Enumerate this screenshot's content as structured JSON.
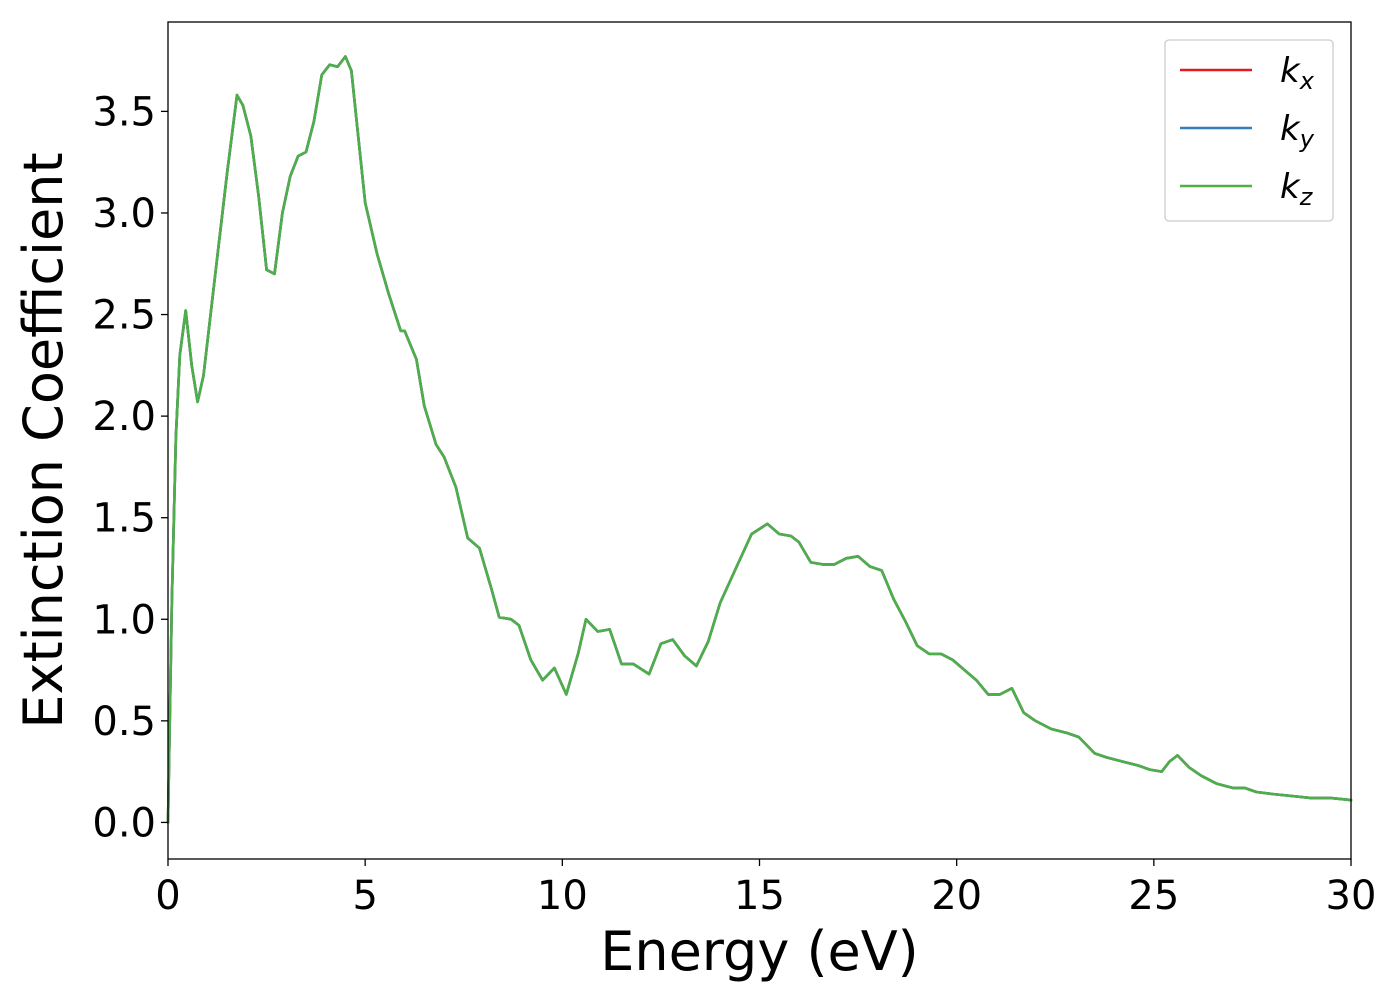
{
  "chart_data": {
    "type": "line",
    "title": "",
    "xlabel": "Energy (eV)",
    "ylabel": "Extinction Coefficient",
    "xlim": [
      0,
      30
    ],
    "ylim": [
      -0.18,
      3.94
    ],
    "xticks": [
      0,
      5,
      10,
      15,
      20,
      25,
      30
    ],
    "yticks": [
      0.0,
      0.5,
      1.0,
      1.5,
      2.0,
      2.5,
      3.0,
      3.5
    ],
    "ytick_labels": [
      "0.0",
      "0.5",
      "1.0",
      "1.5",
      "2.0",
      "2.5",
      "3.0",
      "3.5"
    ],
    "grid": false,
    "legend_position": "top-right",
    "series": [
      {
        "name": "k_x",
        "label_main": "k",
        "label_sub": "x",
        "color": "#e41a1c",
        "x": [
          0,
          0.1,
          0.2,
          0.3,
          0.45,
          0.6,
          0.75,
          0.9,
          1.2,
          1.5,
          1.75,
          1.9,
          2.1,
          2.3,
          2.5,
          2.7,
          2.9,
          3.1,
          3.3,
          3.5,
          3.7,
          3.9,
          4.1,
          4.3,
          4.5,
          4.65,
          4.8,
          5.0,
          5.3,
          5.6,
          5.9,
          6.0,
          6.3,
          6.5,
          6.8,
          7.0,
          7.3,
          7.6,
          7.9,
          8.2,
          8.4,
          8.7,
          8.9,
          9.2,
          9.5,
          9.8,
          10.1,
          10.4,
          10.6,
          10.9,
          11.2,
          11.5,
          11.8,
          12.2,
          12.5,
          12.8,
          13.1,
          13.4,
          13.7,
          14.0,
          14.4,
          14.8,
          15.2,
          15.5,
          15.8,
          16.0,
          16.3,
          16.6,
          16.9,
          17.2,
          17.5,
          17.8,
          18.1,
          18.4,
          18.7,
          19.0,
          19.3,
          19.6,
          19.9,
          20.2,
          20.5,
          20.8,
          21.1,
          21.4,
          21.7,
          22.0,
          22.4,
          22.8,
          23.1,
          23.5,
          23.8,
          24.2,
          24.6,
          24.9,
          25.2,
          25.4,
          25.6,
          25.9,
          26.2,
          26.6,
          27.0,
          27.3,
          27.6,
          28.0,
          28.5,
          29.0,
          29.5,
          30.0
        ],
        "y": [
          0.0,
          1.1,
          1.9,
          2.3,
          2.52,
          2.25,
          2.07,
          2.2,
          2.7,
          3.2,
          3.58,
          3.53,
          3.38,
          3.08,
          2.72,
          2.7,
          3.0,
          3.18,
          3.28,
          3.3,
          3.45,
          3.68,
          3.73,
          3.72,
          3.77,
          3.7,
          3.42,
          3.05,
          2.8,
          2.6,
          2.42,
          2.42,
          2.28,
          2.05,
          1.86,
          1.8,
          1.65,
          1.4,
          1.35,
          1.15,
          1.01,
          1.0,
          0.97,
          0.8,
          0.7,
          0.76,
          0.63,
          0.83,
          1.0,
          0.94,
          0.95,
          0.78,
          0.78,
          0.73,
          0.88,
          0.9,
          0.82,
          0.77,
          0.89,
          1.08,
          1.25,
          1.42,
          1.47,
          1.42,
          1.41,
          1.38,
          1.28,
          1.27,
          1.27,
          1.3,
          1.31,
          1.26,
          1.24,
          1.1,
          0.99,
          0.87,
          0.83,
          0.83,
          0.8,
          0.75,
          0.7,
          0.63,
          0.63,
          0.66,
          0.54,
          0.5,
          0.46,
          0.44,
          0.42,
          0.34,
          0.32,
          0.3,
          0.28,
          0.26,
          0.25,
          0.3,
          0.33,
          0.27,
          0.23,
          0.19,
          0.17,
          0.17,
          0.15,
          0.14,
          0.13,
          0.12,
          0.12,
          0.11
        ]
      },
      {
        "name": "k_y",
        "label_main": "k",
        "label_sub": "y",
        "color": "#377eb8",
        "x": [
          0,
          0.1,
          0.2,
          0.3,
          0.45,
          0.6,
          0.75,
          0.9,
          1.2,
          1.5,
          1.75,
          1.9,
          2.1,
          2.3,
          2.5,
          2.7,
          2.9,
          3.1,
          3.3,
          3.5,
          3.7,
          3.9,
          4.1,
          4.3,
          4.5,
          4.65,
          4.8,
          5.0,
          5.3,
          5.6,
          5.9,
          6.0,
          6.3,
          6.5,
          6.8,
          7.0,
          7.3,
          7.6,
          7.9,
          8.2,
          8.4,
          8.7,
          8.9,
          9.2,
          9.5,
          9.8,
          10.1,
          10.4,
          10.6,
          10.9,
          11.2,
          11.5,
          11.8,
          12.2,
          12.5,
          12.8,
          13.1,
          13.4,
          13.7,
          14.0,
          14.4,
          14.8,
          15.2,
          15.5,
          15.8,
          16.0,
          16.3,
          16.6,
          16.9,
          17.2,
          17.5,
          17.8,
          18.1,
          18.4,
          18.7,
          19.0,
          19.3,
          19.6,
          19.9,
          20.2,
          20.5,
          20.8,
          21.1,
          21.4,
          21.7,
          22.0,
          22.4,
          22.8,
          23.1,
          23.5,
          23.8,
          24.2,
          24.6,
          24.9,
          25.2,
          25.4,
          25.6,
          25.9,
          26.2,
          26.6,
          27.0,
          27.3,
          27.6,
          28.0,
          28.5,
          29.0,
          29.5,
          30.0
        ],
        "y": [
          0.0,
          1.1,
          1.9,
          2.3,
          2.52,
          2.25,
          2.07,
          2.2,
          2.7,
          3.2,
          3.58,
          3.53,
          3.38,
          3.08,
          2.72,
          2.7,
          3.0,
          3.18,
          3.28,
          3.3,
          3.45,
          3.68,
          3.73,
          3.72,
          3.77,
          3.7,
          3.42,
          3.05,
          2.8,
          2.6,
          2.42,
          2.42,
          2.28,
          2.05,
          1.86,
          1.8,
          1.65,
          1.4,
          1.35,
          1.15,
          1.01,
          1.0,
          0.97,
          0.8,
          0.7,
          0.76,
          0.63,
          0.83,
          1.0,
          0.94,
          0.95,
          0.78,
          0.78,
          0.73,
          0.88,
          0.9,
          0.82,
          0.77,
          0.89,
          1.08,
          1.25,
          1.42,
          1.47,
          1.42,
          1.41,
          1.38,
          1.28,
          1.27,
          1.27,
          1.3,
          1.31,
          1.26,
          1.24,
          1.1,
          0.99,
          0.87,
          0.83,
          0.83,
          0.8,
          0.75,
          0.7,
          0.63,
          0.63,
          0.66,
          0.54,
          0.5,
          0.46,
          0.44,
          0.42,
          0.34,
          0.32,
          0.3,
          0.28,
          0.26,
          0.25,
          0.3,
          0.33,
          0.27,
          0.23,
          0.19,
          0.17,
          0.17,
          0.15,
          0.14,
          0.13,
          0.12,
          0.12,
          0.11
        ]
      },
      {
        "name": "k_z",
        "label_main": "k",
        "label_sub": "z",
        "color": "#4daf4a",
        "x": [
          0,
          0.1,
          0.2,
          0.3,
          0.45,
          0.6,
          0.75,
          0.9,
          1.2,
          1.5,
          1.75,
          1.9,
          2.1,
          2.3,
          2.5,
          2.7,
          2.9,
          3.1,
          3.3,
          3.5,
          3.7,
          3.9,
          4.1,
          4.3,
          4.5,
          4.65,
          4.8,
          5.0,
          5.3,
          5.6,
          5.9,
          6.0,
          6.3,
          6.5,
          6.8,
          7.0,
          7.3,
          7.6,
          7.9,
          8.2,
          8.4,
          8.7,
          8.9,
          9.2,
          9.5,
          9.8,
          10.1,
          10.4,
          10.6,
          10.9,
          11.2,
          11.5,
          11.8,
          12.2,
          12.5,
          12.8,
          13.1,
          13.4,
          13.7,
          14.0,
          14.4,
          14.8,
          15.2,
          15.5,
          15.8,
          16.0,
          16.3,
          16.6,
          16.9,
          17.2,
          17.5,
          17.8,
          18.1,
          18.4,
          18.7,
          19.0,
          19.3,
          19.6,
          19.9,
          20.2,
          20.5,
          20.8,
          21.1,
          21.4,
          21.7,
          22.0,
          22.4,
          22.8,
          23.1,
          23.5,
          23.8,
          24.2,
          24.6,
          24.9,
          25.2,
          25.4,
          25.6,
          25.9,
          26.2,
          26.6,
          27.0,
          27.3,
          27.6,
          28.0,
          28.5,
          29.0,
          29.5,
          30.0
        ],
        "y": [
          0.0,
          1.1,
          1.9,
          2.3,
          2.52,
          2.25,
          2.07,
          2.2,
          2.7,
          3.2,
          3.58,
          3.53,
          3.38,
          3.08,
          2.72,
          2.7,
          3.0,
          3.18,
          3.28,
          3.3,
          3.45,
          3.68,
          3.73,
          3.72,
          3.77,
          3.7,
          3.42,
          3.05,
          2.8,
          2.6,
          2.42,
          2.42,
          2.28,
          2.05,
          1.86,
          1.8,
          1.65,
          1.4,
          1.35,
          1.15,
          1.01,
          1.0,
          0.97,
          0.8,
          0.7,
          0.76,
          0.63,
          0.83,
          1.0,
          0.94,
          0.95,
          0.78,
          0.78,
          0.73,
          0.88,
          0.9,
          0.82,
          0.77,
          0.89,
          1.08,
          1.25,
          1.42,
          1.47,
          1.42,
          1.41,
          1.38,
          1.28,
          1.27,
          1.27,
          1.3,
          1.31,
          1.26,
          1.24,
          1.1,
          0.99,
          0.87,
          0.83,
          0.83,
          0.8,
          0.75,
          0.7,
          0.63,
          0.63,
          0.66,
          0.54,
          0.5,
          0.46,
          0.44,
          0.42,
          0.34,
          0.32,
          0.3,
          0.28,
          0.26,
          0.25,
          0.3,
          0.33,
          0.27,
          0.23,
          0.19,
          0.17,
          0.17,
          0.15,
          0.14,
          0.13,
          0.12,
          0.12,
          0.11
        ]
      }
    ]
  }
}
